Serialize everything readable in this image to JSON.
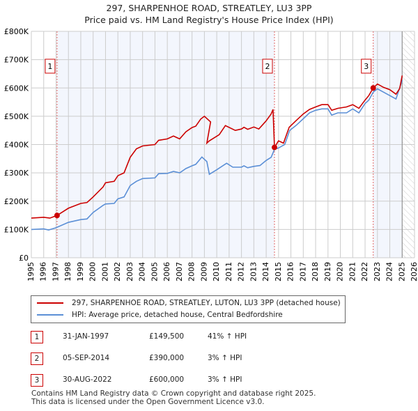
{
  "title": "297, SHARPENHOE ROAD, STREATLEY, LU3 3PP",
  "subtitle": "Price paid vs. HM Land Registry's House Price Index (HPI)",
  "chart_data": {
    "type": "line",
    "xlim": [
      1995,
      2026
    ],
    "ylim": [
      0,
      800000
    ],
    "x_ticks": [
      "1995",
      "1996",
      "1997",
      "1998",
      "1999",
      "2000",
      "2001",
      "2002",
      "2003",
      "2004",
      "2005",
      "2006",
      "2007",
      "2008",
      "2009",
      "2010",
      "2011",
      "2012",
      "2013",
      "2014",
      "2015",
      "2016",
      "2017",
      "2018",
      "2019",
      "2020",
      "2021",
      "2022",
      "2023",
      "2024",
      "2025",
      "2026"
    ],
    "y_ticks": [
      {
        "v": 0,
        "label": "£0"
      },
      {
        "v": 100000,
        "label": "£100K"
      },
      {
        "v": 200000,
        "label": "£200K"
      },
      {
        "v": 300000,
        "label": "£300K"
      },
      {
        "v": 400000,
        "label": "£400K"
      },
      {
        "v": 500000,
        "label": "£500K"
      },
      {
        "v": 600000,
        "label": "£600K"
      },
      {
        "v": 700000,
        "label": "£700K"
      },
      {
        "v": 800000,
        "label": "£800K"
      }
    ],
    "grid": true,
    "series": [
      {
        "name": "297, SHARPENHOE ROAD, STREATLEY, LUTON, LU3 3PP (detached house)",
        "color": "#cc0000",
        "x": [
          1995,
          1996,
          1996.5,
          1997.08,
          1998,
          1999,
          1999.5,
          2000,
          2000.8,
          2001,
          2001.7,
          2002,
          2002.5,
          2003,
          2003.5,
          2004,
          2005,
          2005.3,
          2006,
          2006.5,
          2007,
          2007.5,
          2008,
          2008.3,
          2008.7,
          2009,
          2009.5,
          2009.2,
          2009.4,
          2010.2,
          2010.7,
          2011.5,
          2012,
          2012.2,
          2012.5,
          2013,
          2013.4,
          2014,
          2014.4,
          2014.55,
          2014.67,
          2015,
          2015.4,
          2015.86,
          2016.4,
          2017,
          2017.5,
          2018,
          2018.5,
          2019,
          2019.3,
          2019.8,
          2020.5,
          2021,
          2021.5,
          2022,
          2022.3,
          2022.66,
          2023,
          2023.5,
          2024,
          2024.5,
          2024.8,
          2025
        ],
        "y": [
          140000,
          143000,
          140000,
          149500,
          175000,
          192000,
          195000,
          215000,
          250000,
          265000,
          270000,
          290000,
          300000,
          355000,
          385000,
          395000,
          400000,
          415000,
          420000,
          430000,
          420000,
          445000,
          460000,
          465000,
          490000,
          500000,
          480000,
          405000,
          413000,
          435000,
          467000,
          450000,
          455000,
          461000,
          454000,
          462000,
          455000,
          484000,
          508000,
          524000,
          390000,
          413000,
          405000,
          461000,
          484000,
          508000,
          524000,
          533000,
          541000,
          541000,
          521000,
          528000,
          533000,
          541000,
          528000,
          557000,
          573000,
          600000,
          614000,
          602000,
          594000,
          578000,
          598000,
          644000
        ]
      },
      {
        "name": "HPI: Average price, detached house, Central Bedfordshire",
        "color": "#5b8fd6",
        "x": [
          1995,
          1996,
          1996.4,
          1997,
          1998,
          1999,
          1999.5,
          2000,
          2000.8,
          2001,
          2001.7,
          2002,
          2002.5,
          2003,
          2003.5,
          2004,
          2005,
          2005.3,
          2006,
          2006.5,
          2007,
          2007.5,
          2008,
          2008.3,
          2008.8,
          2009.2,
          2009.4,
          2010,
          2010.8,
          2011.3,
          2012,
          2012.2,
          2012.5,
          2013,
          2013.5,
          2014,
          2014.4,
          2014.67,
          2015,
          2015.5,
          2015.9,
          2016.4,
          2017,
          2017.5,
          2018,
          2018.5,
          2019,
          2019.3,
          2019.8,
          2020.5,
          2021,
          2021.5,
          2022,
          2022.3,
          2022.66,
          2023,
          2023.5,
          2024,
          2024.5,
          2025
        ],
        "y": [
          100000,
          102000,
          98000,
          106000,
          125000,
          135000,
          137000,
          160000,
          185000,
          190000,
          192000,
          208000,
          215000,
          255000,
          270000,
          280000,
          282000,
          297000,
          298000,
          305000,
          300000,
          315000,
          325000,
          330000,
          356000,
          340000,
          295000,
          311000,
          334000,
          320000,
          320000,
          325000,
          318000,
          323000,
          326000,
          344000,
          355000,
          383000,
          388000,
          400000,
          450000,
          467000,
          491000,
          512000,
          521000,
          526000,
          526000,
          504000,
          512000,
          512000,
          526000,
          512000,
          545000,
          557000,
          585000,
          597000,
          585000,
          573000,
          561000,
          627000
        ]
      }
    ],
    "sales": [
      {
        "n": "1",
        "x": 1997.08,
        "y": 149500
      },
      {
        "n": "2",
        "x": 2014.67,
        "y": 390000
      },
      {
        "n": "3",
        "x": 2022.66,
        "y": 600000
      }
    ]
  },
  "legend": {
    "red": "297, SHARPENHOE ROAD, STREATLEY, LUTON, LU3 3PP (detached house)",
    "blue": "HPI: Average price, detached house, Central Bedfordshire"
  },
  "transactions": [
    {
      "n": "1",
      "date": "31-JAN-1997",
      "price": "£149,500",
      "hpi": "41% ↑ HPI"
    },
    {
      "n": "2",
      "date": "05-SEP-2014",
      "price": "£390,000",
      "hpi": "3% ↑ HPI"
    },
    {
      "n": "3",
      "date": "30-AUG-2022",
      "price": "£600,000",
      "hpi": "3% ↑ HPI"
    }
  ],
  "footer": {
    "line1": "Contains HM Land Registry data © Crown copyright and database right 2025.",
    "line2": "This data is licensed under the Open Government Licence v3.0."
  }
}
